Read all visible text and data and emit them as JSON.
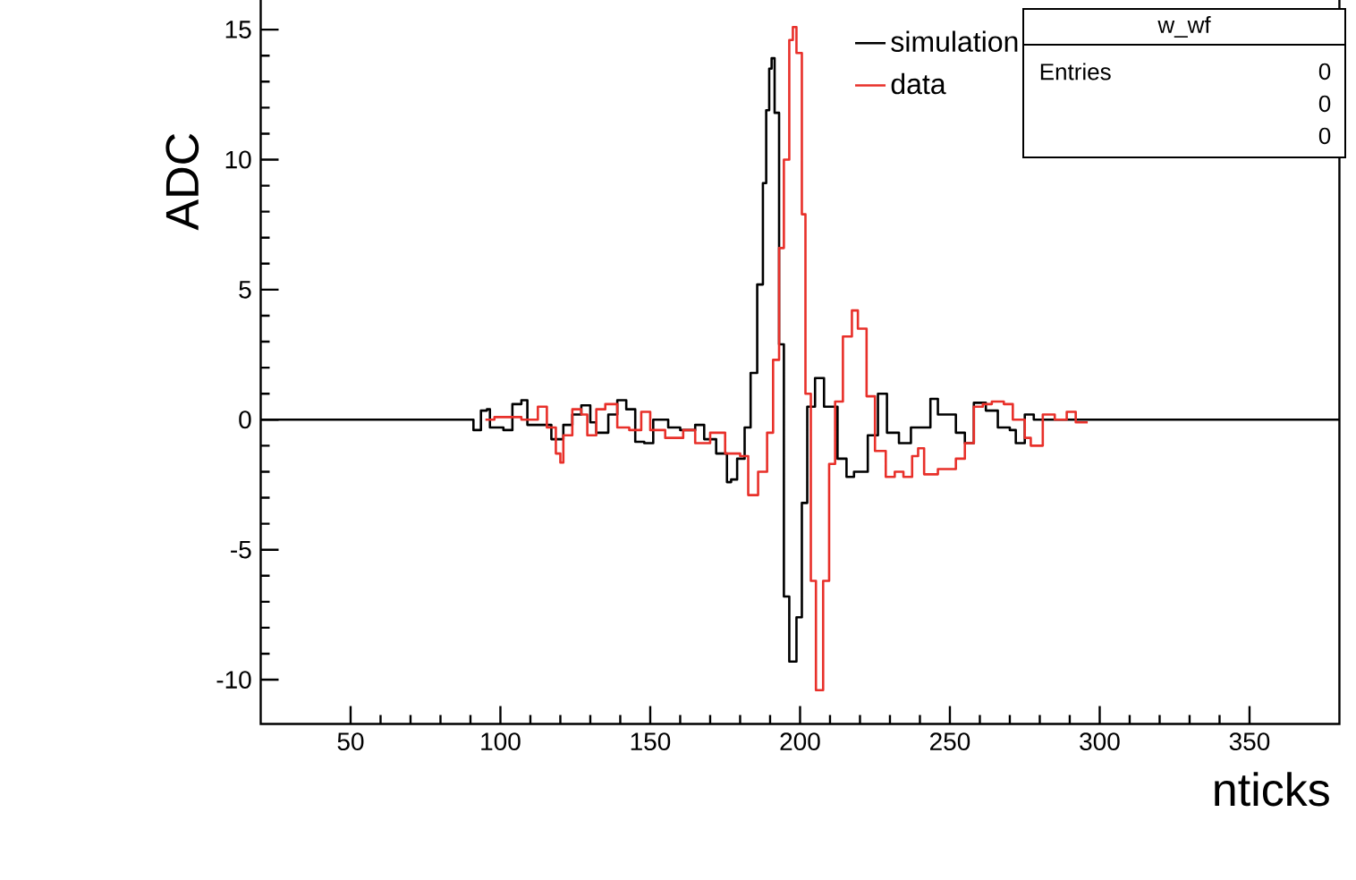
{
  "chart_data": {
    "type": "step",
    "xlabel": "nticks",
    "ylabel": "ADC",
    "xlim": [
      20,
      380
    ],
    "ylim": [
      -11.7,
      16.5
    ],
    "xticks": [
      50,
      100,
      150,
      200,
      250,
      300,
      350
    ],
    "yticks": [
      -10,
      -5,
      0,
      5,
      10,
      15
    ],
    "legend": "top right",
    "annotations": [
      "w_wf",
      "Entries",
      "0",
      "0",
      "0"
    ],
    "series": [
      {
        "name": "simulation",
        "color": "#000000",
        "x": [
          20,
          90.5,
          91,
          93.5,
          95.5,
          96.5,
          101,
          104,
          107,
          109,
          113,
          117,
          121,
          124,
          127,
          130,
          132,
          136,
          139,
          142,
          145,
          148,
          151,
          156,
          160,
          165,
          168,
          172,
          175.6,
          177,
          179,
          181.5,
          183.5,
          185.7,
          187.6,
          188.7,
          189.7,
          190.5,
          191.5,
          193,
          194.6,
          196.4,
          198.8,
          200.6,
          202.4,
          205,
          208,
          212.5,
          215.5,
          218,
          222.6,
          226,
          229,
          233,
          237,
          243.5,
          246,
          252,
          255,
          258,
          262,
          266,
          270,
          272,
          275,
          278,
          380
        ],
        "values": [
          0,
          0,
          -0.4,
          0.35,
          0.4,
          -0.3,
          -0.4,
          0.6,
          0.75,
          -0.2,
          -0.2,
          -0.75,
          -0.2,
          0.2,
          0.55,
          -0.1,
          -0.5,
          0.2,
          0.75,
          0.4,
          -0.85,
          -0.9,
          0.0,
          -0.3,
          -0.4,
          -0.2,
          -0.75,
          -1.3,
          -2.4,
          -2.3,
          -1.5,
          -0.3,
          1.8,
          5.2,
          9.1,
          11.9,
          13.5,
          13.9,
          11.8,
          2.9,
          -6.8,
          -9.3,
          -7.6,
          -3.2,
          0.5,
          1.6,
          0.5,
          -1.5,
          -2.2,
          -2.0,
          -0.6,
          1.0,
          -0.5,
          -0.9,
          -0.3,
          0.8,
          0.2,
          -0.5,
          -0.9,
          0.65,
          0.35,
          -0.3,
          -0.4,
          -0.9,
          0.2,
          0.0,
          0.0
        ]
      },
      {
        "name": "data",
        "color": "#e8302a",
        "x": [
          95,
          98,
          107,
          112.5,
          115.5,
          118.5,
          120,
          121,
          124,
          127,
          129,
          132,
          135,
          139,
          143,
          147,
          150,
          155,
          161,
          165,
          170,
          175,
          180,
          182.7,
          186,
          189,
          191,
          193,
          194.6,
          196.4,
          197.6,
          198.8,
          200.6,
          201.8,
          203.6,
          205.3,
          207.7,
          209.7,
          211.7,
          214.3,
          217.3,
          219.3,
          222.2,
          225,
          228.6,
          231.6,
          234.5,
          237.4,
          239.4,
          241.4,
          246,
          252,
          255,
          258,
          261,
          264,
          268,
          271,
          275,
          277,
          281,
          285,
          289,
          292,
          296
        ],
        "values": [
          0,
          0.1,
          0,
          0.5,
          -0.3,
          -1.3,
          -1.65,
          -0.6,
          0.4,
          0.2,
          -0.6,
          0.4,
          0.6,
          -0.3,
          -0.4,
          0.3,
          -0.4,
          -0.7,
          -0.4,
          -0.9,
          -0.5,
          -1.3,
          -1.4,
          -2.9,
          -2.0,
          -0.5,
          2.3,
          6.6,
          10.0,
          14.6,
          15.1,
          14.1,
          7.9,
          1.0,
          -6.2,
          -10.4,
          -6.2,
          -1.7,
          0.7,
          3.2,
          4.2,
          3.5,
          0.9,
          -1.2,
          -2.2,
          -2.0,
          -2.2,
          -1.4,
          -1.1,
          -2.1,
          -1.9,
          -1.5,
          -0.9,
          0.5,
          0.6,
          0.7,
          0.6,
          0.0,
          -0.7,
          -1.0,
          0.2,
          0.0,
          0.3,
          -0.1,
          -0.1
        ]
      }
    ]
  }
}
